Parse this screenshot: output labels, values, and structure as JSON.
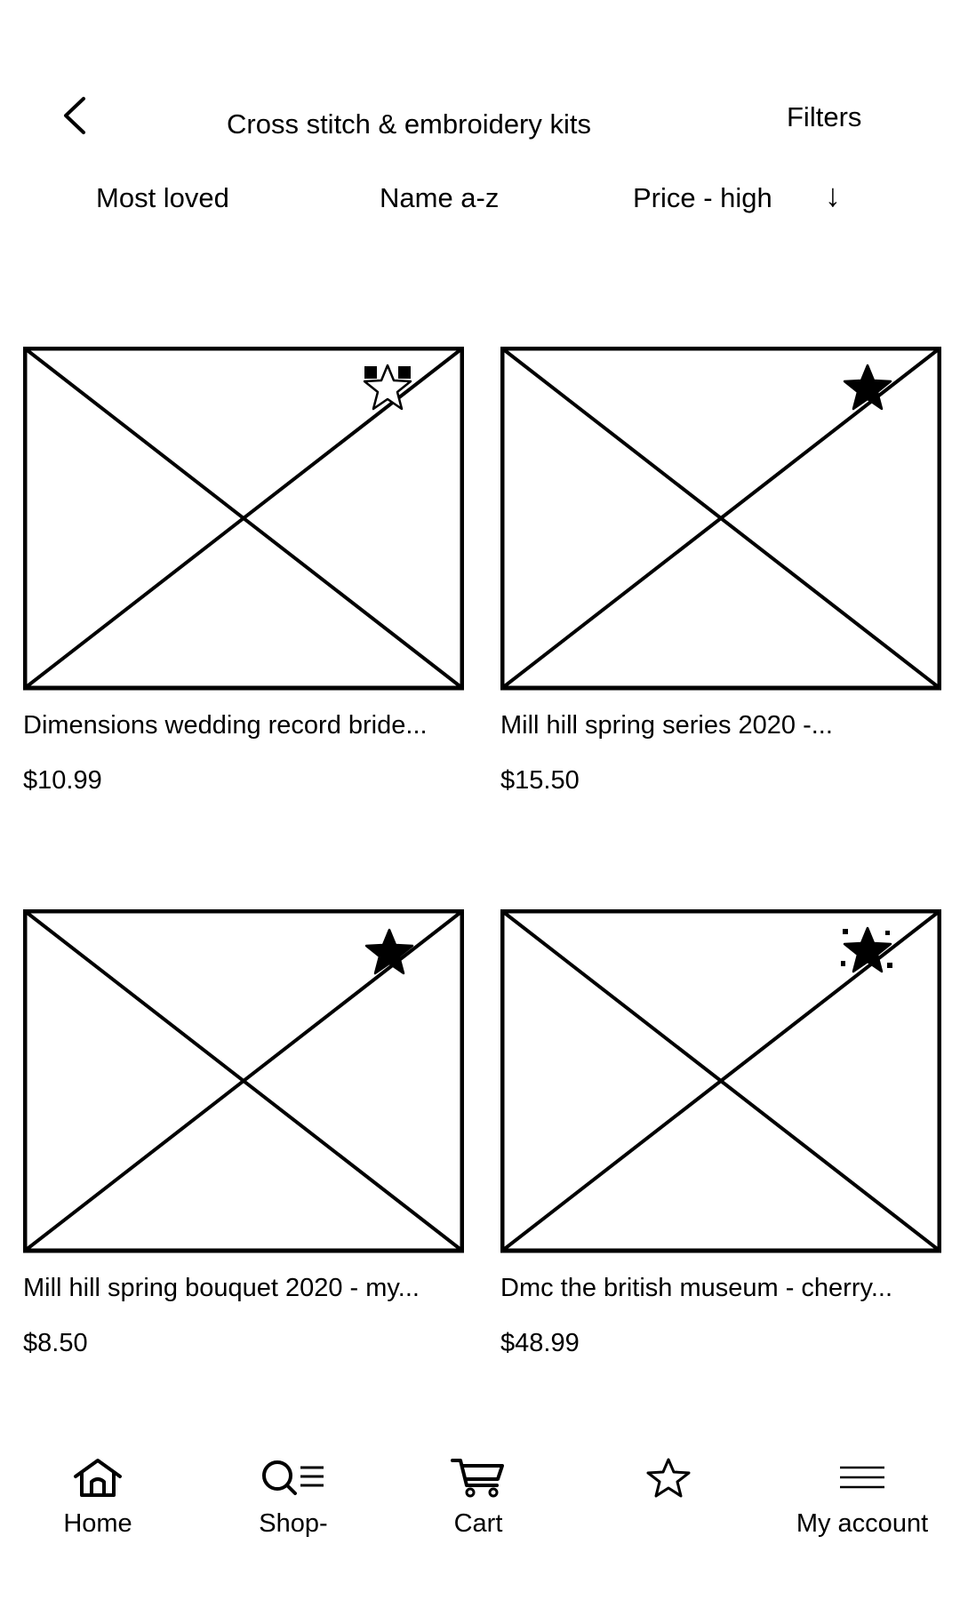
{
  "header": {
    "back_icon": "chevron-left-icon",
    "title": "Cross stitch & embroidery kits",
    "filters_label": "Filters"
  },
  "sort": {
    "options": [
      "Most loved",
      "Name a-z",
      "Price - high"
    ],
    "direction_glyph": "↓"
  },
  "products": [
    {
      "name": "Dimensions wedding record bride...",
      "price": "$10.99",
      "favorite": false
    },
    {
      "name": "Mill hill spring series 2020 -...",
      "price": "$15.50",
      "favorite": true
    },
    {
      "name": "Mill hill spring bouquet 2020 - my...",
      "price": "$8.50",
      "favorite": true
    },
    {
      "name": "Dmc the british museum - cherry...",
      "price": "$48.99",
      "favorite": true
    }
  ],
  "bottom_nav": {
    "items": [
      {
        "label": "Home",
        "icon": "home-icon"
      },
      {
        "label": "Shop-",
        "icon": "search-list-icon"
      },
      {
        "label": "Cart",
        "icon": "cart-icon"
      },
      {
        "label": "",
        "icon": "star-icon"
      },
      {
        "label": "My account",
        "icon": "menu-icon"
      }
    ]
  }
}
